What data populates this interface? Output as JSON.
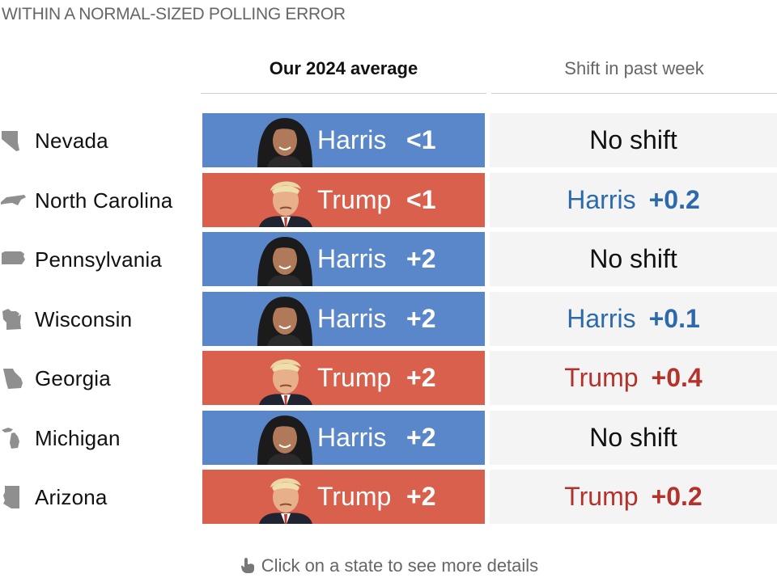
{
  "title": "WITHIN A NORMAL-SIZED POLLING ERROR",
  "columns": {
    "average": "Our 2024 average",
    "shift": "Shift in past week"
  },
  "colors": {
    "harris_fill": "#5a87c9",
    "trump_fill": "#d9604d",
    "harris_text": "#2d6aab",
    "trump_text": "#b5322c",
    "shift_bg": "#f4f4f4",
    "state_icon": "#8f8f8f"
  },
  "rows": [
    {
      "state": "Nevada",
      "icon": "nevada-icon",
      "leader": "Harris",
      "margin": "<1",
      "shift_text": "No shift",
      "shift_cand": "",
      "shift_val": ""
    },
    {
      "state": "North Carolina",
      "icon": "north-carolina-icon",
      "leader": "Trump",
      "margin": "<1",
      "shift_text": "",
      "shift_cand": "Harris",
      "shift_val": "+0.2"
    },
    {
      "state": "Pennsylvania",
      "icon": "pennsylvania-icon",
      "leader": "Harris",
      "margin": "+2",
      "shift_text": "No shift",
      "shift_cand": "",
      "shift_val": ""
    },
    {
      "state": "Wisconsin",
      "icon": "wisconsin-icon",
      "leader": "Harris",
      "margin": "+2",
      "shift_text": "",
      "shift_cand": "Harris",
      "shift_val": "+0.1"
    },
    {
      "state": "Georgia",
      "icon": "georgia-icon",
      "leader": "Trump",
      "margin": "+2",
      "shift_text": "",
      "shift_cand": "Trump",
      "shift_val": "+0.4"
    },
    {
      "state": "Michigan",
      "icon": "michigan-icon",
      "leader": "Harris",
      "margin": "+2",
      "shift_text": "No shift",
      "shift_cand": "",
      "shift_val": ""
    },
    {
      "state": "Arizona",
      "icon": "arizona-icon",
      "leader": "Trump",
      "margin": "+2",
      "shift_text": "",
      "shift_cand": "Trump",
      "shift_val": "+0.2"
    }
  ],
  "footer": {
    "icon": "pointing-hand-icon",
    "text": "Click on a state to see more details"
  }
}
